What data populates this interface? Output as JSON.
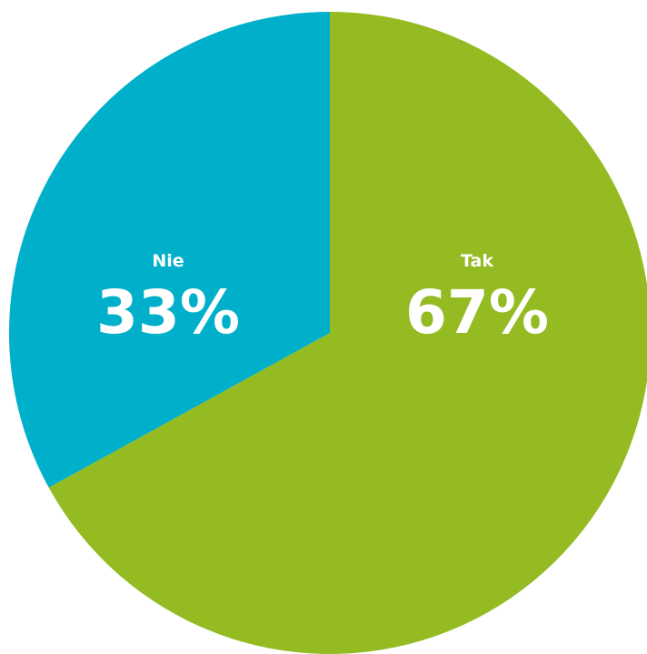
{
  "chart_data": {
    "type": "pie",
    "start_angle_deg": 0,
    "direction": "clockwise",
    "slices": [
      {
        "label": "Tak",
        "value": 67,
        "value_label": "67%",
        "color": "#94bb22"
      },
      {
        "label": "Nie",
        "value": 33,
        "value_label": "33%",
        "color": "#00b0ca"
      }
    ]
  }
}
